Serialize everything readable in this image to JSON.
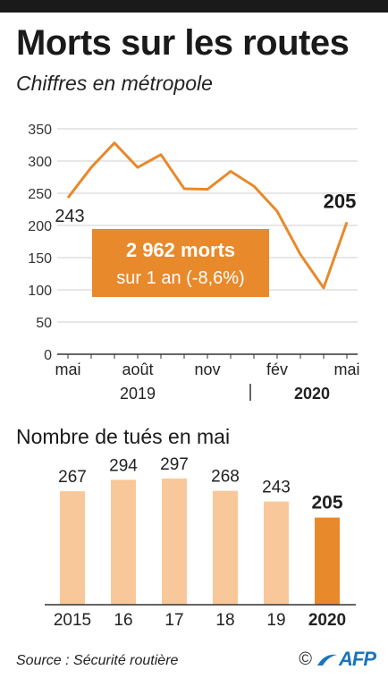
{
  "header": {
    "title": "Morts sur les routes",
    "subtitle": "Chiffres en métropole"
  },
  "callout": {
    "line1": "2 962 morts",
    "line2": "sur 1 an (-8,6%)"
  },
  "section2_title": "Nombre de tués en mai",
  "footer": {
    "source": "Source : Sécurité routière",
    "copyright": "©",
    "logo_text": "AFP"
  },
  "colors": {
    "line": "#e8892b",
    "bar_light": "#f9c89a",
    "bar_highlight": "#e8892b",
    "callout_bg": "#e8892b",
    "afp_blue": "#1b75bc"
  },
  "chart_data": [
    {
      "type": "line",
      "x": [
        "2019-05",
        "2019-06",
        "2019-07",
        "2019-08",
        "2019-09",
        "2019-10",
        "2019-11",
        "2019-12",
        "2020-01",
        "2020-02",
        "2020-03",
        "2020-04",
        "2020-05"
      ],
      "series": [
        {
          "values": [
            243,
            290,
            328,
            290,
            310,
            257,
            256,
            284,
            261,
            222,
            155,
            103,
            205
          ]
        }
      ],
      "ylim": [
        0,
        350
      ],
      "yticks": [
        "0",
        "50",
        "100",
        "150",
        "200",
        "250",
        "300",
        "350"
      ],
      "xtick_labels": [
        "mai",
        "août",
        "nov",
        "fév",
        "mai"
      ],
      "year_labels": [
        "2019",
        "2020"
      ],
      "annotations": {
        "start": "243",
        "end": "205"
      },
      "grid": true
    },
    {
      "type": "bar",
      "categories": [
        "2015",
        "16",
        "17",
        "18",
        "19",
        "2020"
      ],
      "values": [
        267,
        294,
        297,
        268,
        243,
        205
      ],
      "value_labels": [
        "267",
        "294",
        "297",
        "268",
        "243",
        "205"
      ],
      "highlight": "2020"
    }
  ]
}
